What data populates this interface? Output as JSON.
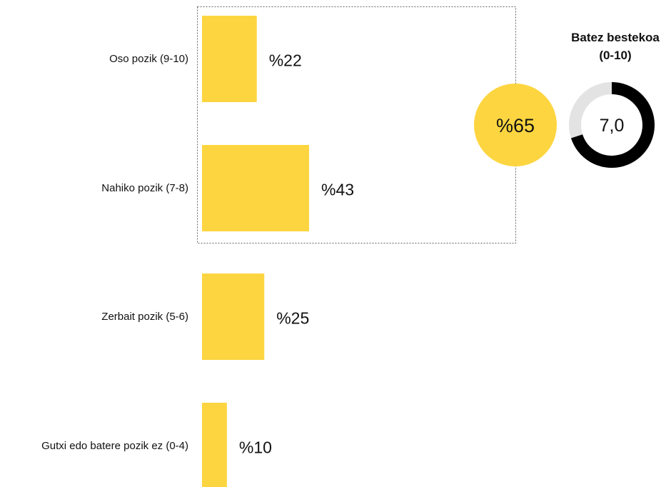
{
  "chart_data": {
    "type": "bar",
    "orientation": "horizontal",
    "categories": [
      "Oso pozik (9-10)",
      "Nahiko pozik (7-8)",
      "Zerbait pozik (5-6)",
      "Gutxi edo batere pozik ez (0-4)"
    ],
    "values": [
      22,
      43,
      25,
      10
    ],
    "value_labels": [
      "%22",
      "%43",
      "%25",
      "%10"
    ],
    "bar_color": "#FDD540",
    "highlight": {
      "categories": [
        "Oso pozik (9-10)",
        "Nahiko pozik (7-8)"
      ],
      "total": 65,
      "label": "%65",
      "color": "#FDD540"
    },
    "average": {
      "title_line1": "Batez bestekoa",
      "title_line2": "(0-10)",
      "value": 7.0,
      "max": 10,
      "label": "7,0",
      "fill_color": "#000000",
      "track_color": "#E3E3E3"
    },
    "grid": false,
    "legend": "none"
  }
}
